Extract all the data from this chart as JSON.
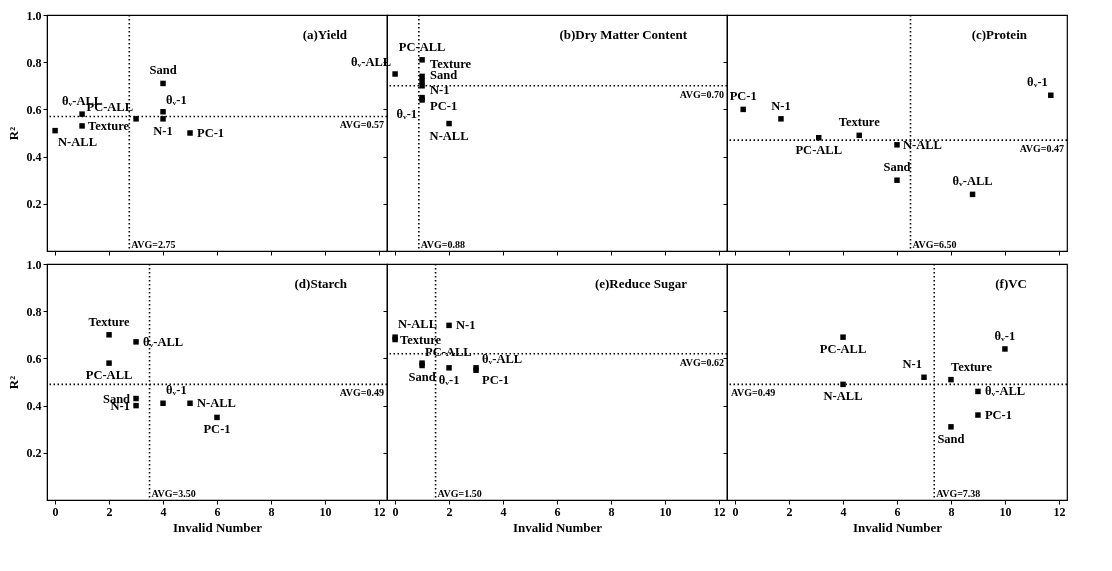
{
  "chart_data": [
    {
      "type": "scatter",
      "title": "(a)Yield",
      "ylabel": "R²",
      "color": "#000000",
      "marker": "square",
      "xlim": [
        -0.3,
        12.3
      ],
      "ylim": [
        0,
        1
      ],
      "xticks": [
        0,
        2,
        4,
        6,
        8,
        10,
        12
      ],
      "yticks": [
        0.2,
        0.4,
        0.6,
        0.8,
        {
          "value": 1,
          "label": "1.0"
        }
      ],
      "tick_labels": "y",
      "x": [
        0,
        1,
        1,
        3,
        4,
        4,
        4,
        5
      ],
      "values": [
        0.51,
        0.58,
        0.53,
        0.56,
        0.59,
        0.56,
        0.71,
        0.5
      ],
      "value_labels": [
        "N-ALL",
        "θᵥ-ALL",
        "Texture",
        "PC-ALL",
        "θᵥ-1",
        "N-1",
        "Sand",
        "PC-1"
      ],
      "ref_lines": [
        {
          "axis": "x",
          "value": 2.75,
          "label": "AVG=2.75",
          "line_style": "dotted"
        },
        {
          "axis": "y",
          "value": 0.57,
          "label": "AVG=0.57",
          "line_style": "dotted"
        }
      ]
    },
    {
      "type": "scatter",
      "title": "(b)Dry Matter Content",
      "color": "#000000",
      "marker": "square",
      "xlim": [
        -0.3,
        12.3
      ],
      "ylim": [
        0,
        1
      ],
      "xticks": [
        0,
        2,
        4,
        6,
        8,
        10,
        12
      ],
      "yticks": [
        0.2,
        0.4,
        0.6,
        0.8,
        1.0
      ],
      "tick_labels": false,
      "x": [
        0,
        1,
        1,
        1,
        1,
        1,
        1,
        2
      ],
      "values": [
        0.75,
        0.81,
        0.74,
        0.72,
        0.7,
        0.65,
        0.64,
        0.54
      ],
      "value_labels": [
        "θᵥ-ALL",
        "PC-ALL",
        "Texture",
        "Sand",
        "N-1",
        "PC-1",
        "θᵥ-1",
        "N-ALL"
      ],
      "ref_lines": [
        {
          "axis": "x",
          "value": 0.88,
          "label": "AVG=0.88",
          "line_style": "dotted"
        },
        {
          "axis": "y",
          "value": 0.7,
          "label": "AVG=0.70",
          "line_style": "dotted"
        }
      ]
    },
    {
      "type": "scatter",
      "title": "(c)Protein",
      "color": "#000000",
      "marker": "square",
      "xlim": [
        -0.3,
        12.3
      ],
      "ylim": [
        0,
        1
      ],
      "xticks": [
        0,
        2,
        4,
        6,
        8,
        10,
        12
      ],
      "yticks": [
        0.2,
        0.4,
        0.6,
        0.8,
        1.0
      ],
      "tick_labels": false,
      "x": [
        0.3,
        1.7,
        3.1,
        4.6,
        6,
        6,
        8.8,
        11.7
      ],
      "values": [
        0.6,
        0.56,
        0.48,
        0.49,
        0.45,
        0.3,
        0.24,
        0.66
      ],
      "value_labels": [
        "PC-1",
        "N-1",
        "PC-ALL",
        "Texture",
        "N-ALL",
        "Sand",
        "θᵥ-ALL",
        "θᵥ-1"
      ],
      "ref_lines": [
        {
          "axis": "x",
          "value": 6.5,
          "label": "AVG=6.50",
          "line_style": "dotted"
        },
        {
          "axis": "y",
          "value": 0.47,
          "label": "AVG=0.47",
          "line_style": "dotted"
        }
      ]
    },
    {
      "type": "scatter",
      "title": "(d)Starch",
      "xlabel": "Invalid Number",
      "ylabel": "R²",
      "color": "#000000",
      "marker": "square",
      "xlim": [
        -0.3,
        12.3
      ],
      "ylim": [
        0,
        1
      ],
      "xticks": [
        0,
        2,
        4,
        6,
        8,
        10,
        12
      ],
      "yticks": [
        0.2,
        0.4,
        0.6,
        0.8,
        {
          "value": 1,
          "label": "1.0"
        }
      ],
      "x": [
        2,
        3,
        2,
        3,
        3,
        4,
        5,
        6
      ],
      "values": [
        0.7,
        0.67,
        0.58,
        0.43,
        0.4,
        0.41,
        0.41,
        0.35
      ],
      "value_labels": [
        "Texture",
        "θᵥ-ALL",
        "PC-ALL",
        "Sand",
        "N-1",
        "θᵥ-1",
        "N-ALL",
        "PC-1"
      ],
      "ref_lines": [
        {
          "axis": "x",
          "value": 3.5,
          "label": "AVG=3.50",
          "line_style": "dotted"
        },
        {
          "axis": "y",
          "value": 0.49,
          "label": "AVG=0.49",
          "line_style": "dotted"
        }
      ]
    },
    {
      "type": "scatter",
      "title": "(e)Reduce Sugar",
      "xlabel": "Invalid Number",
      "color": "#000000",
      "marker": "square",
      "xlim": [
        -0.3,
        12.3
      ],
      "ylim": [
        0,
        1
      ],
      "xticks": [
        0,
        2,
        4,
        6,
        8,
        10,
        12
      ],
      "yticks": [
        0.2,
        0.4,
        0.6,
        0.8,
        1.0
      ],
      "tick_labels": "x",
      "x": [
        0,
        0,
        2,
        1,
        1,
        2,
        3,
        3
      ],
      "values": [
        0.69,
        0.68,
        0.74,
        0.58,
        0.57,
        0.56,
        0.56,
        0.55
      ],
      "value_labels": [
        "N-ALL",
        "Texture",
        "N-1",
        "PC-ALL",
        "Sand",
        "θᵥ-1",
        "θᵥ-ALL",
        "PC-1"
      ],
      "ref_lines": [
        {
          "axis": "x",
          "value": 1.5,
          "label": "AVG=1.50",
          "line_style": "dotted"
        },
        {
          "axis": "y",
          "value": 0.62,
          "label": "AVG=0.62",
          "line_style": "dotted"
        }
      ]
    },
    {
      "type": "scatter",
      "title": "(f)VC",
      "xlabel": "Invalid Number",
      "color": "#000000",
      "marker": "square",
      "xlim": [
        -0.3,
        12.3
      ],
      "ylim": [
        0,
        1
      ],
      "xticks": [
        0,
        2,
        4,
        6,
        8,
        10,
        12
      ],
      "yticks": [
        0.2,
        0.4,
        0.6,
        0.8,
        1.0
      ],
      "tick_labels": "x",
      "x": [
        4,
        4,
        7,
        8,
        10,
        9,
        9,
        8
      ],
      "values": [
        0.69,
        0.49,
        0.52,
        0.51,
        0.64,
        0.46,
        0.36,
        0.31
      ],
      "value_labels": [
        "PC-ALL",
        "N-ALL",
        "N-1",
        "Texture",
        "θᵥ-1",
        "θᵥ-ALL",
        "PC-1",
        "Sand"
      ],
      "ref_lines": [
        {
          "axis": "x",
          "value": 7.38,
          "label": "AVG=7.38",
          "line_style": "dotted"
        },
        {
          "axis": "y",
          "value": 0.49,
          "label": "AVG=0.49",
          "line_style": "dotted"
        }
      ]
    }
  ]
}
